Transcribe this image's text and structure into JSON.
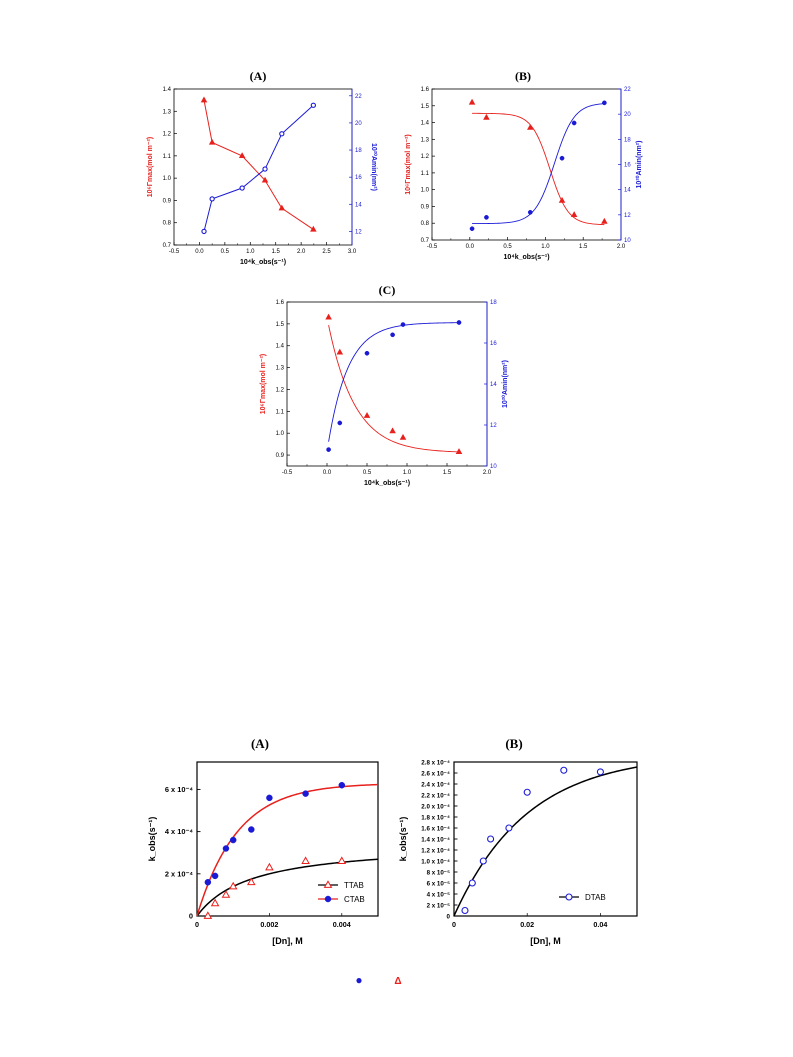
{
  "colors": {
    "red": "#e8211d",
    "blue": "#1a1ad6",
    "black": "#000000"
  },
  "stray_symbols": {
    "first": "●",
    "second": "Δ"
  },
  "chart_data": [
    {
      "id": "top-A",
      "type": "line",
      "panel_label": "(A)",
      "xlabel": "10⁴k_obs(s⁻¹)",
      "ylabel_left": "10⁶Γmax(mol m⁻²)",
      "ylabel_right": "10²⁰Amin(nm²)",
      "xlim": [
        -0.5,
        3.0
      ],
      "xticks": [
        -0.5,
        0.0,
        0.5,
        1.0,
        1.5,
        2.0,
        2.5,
        3.0
      ],
      "xtick_labels": [
        "-0.5",
        "0.0",
        "0.5",
        "1.0",
        "1.5",
        "2.0",
        "2.5",
        "3.0"
      ],
      "ylim_left": [
        0.7,
        1.4
      ],
      "yticks_left": [
        0.7,
        0.8,
        0.9,
        1.0,
        1.1,
        1.2,
        1.3,
        1.4
      ],
      "ytick_labels_left": [
        "0.7",
        "0.8",
        "0.9",
        "1.0",
        "1.1",
        "1.2",
        "1.3",
        "1.4"
      ],
      "ylim_right": [
        11,
        22.5
      ],
      "yticks_right": [
        12,
        14,
        16,
        18,
        20,
        22
      ],
      "ytick_labels_right": [
        "12",
        "14",
        "16",
        "18",
        "20",
        "22"
      ],
      "series": [
        {
          "axis": "left",
          "color": "red",
          "marker": "triangle",
          "fit": "polyline",
          "x": [
            0.09,
            0.25,
            0.84,
            1.29,
            1.62,
            2.24
          ],
          "y": [
            1.35,
            1.16,
            1.1,
            0.99,
            0.865,
            0.77
          ]
        },
        {
          "axis": "right",
          "color": "blue",
          "marker": "open-circle",
          "fit": "polyline",
          "x": [
            0.09,
            0.25,
            0.84,
            1.29,
            1.62,
            2.24
          ],
          "y": [
            12.0,
            14.4,
            15.2,
            16.6,
            19.2,
            21.3
          ]
        }
      ]
    },
    {
      "id": "top-B",
      "type": "scatter",
      "panel_label": "(B)",
      "xlabel": "10⁴k_obs(s⁻¹)",
      "ylabel_left": "10⁶Γmax(mol m⁻²)",
      "ylabel_right": "10²⁰Amin(nm²)",
      "xlim": [
        -0.5,
        2.0
      ],
      "xticks": [
        -0.5,
        0.0,
        0.5,
        1.0,
        1.5,
        2.0
      ],
      "xtick_labels": [
        "-0.5",
        "0.0",
        "0.5",
        "1.0",
        "1.5",
        "2.0"
      ],
      "ylim_left": [
        0.7,
        1.6
      ],
      "yticks_left": [
        0.7,
        0.8,
        0.9,
        1.0,
        1.1,
        1.2,
        1.3,
        1.4,
        1.5,
        1.6
      ],
      "ytick_labels_left": [
        "0.7",
        "0.8",
        "0.9",
        "1.0",
        "1.1",
        "1.2",
        "1.3",
        "1.4",
        "1.5",
        "1.6"
      ],
      "ylim_right": [
        10,
        22
      ],
      "yticks_right": [
        10,
        12,
        14,
        16,
        18,
        20,
        22
      ],
      "ytick_labels_right": [
        "10",
        "12",
        "14",
        "16",
        "18",
        "20",
        "22"
      ],
      "series": [
        {
          "axis": "left",
          "color": "red",
          "marker": "triangle",
          "fit": "sigmoid",
          "x": [
            0.03,
            0.22,
            0.8,
            1.22,
            1.38,
            1.78
          ],
          "y": [
            1.52,
            1.43,
            1.37,
            0.935,
            0.85,
            0.81
          ],
          "fit_params": {
            "top": 1.455,
            "bottom": 0.79,
            "x0": 1.06,
            "k": 0.12
          }
        },
        {
          "axis": "right",
          "color": "blue",
          "marker": "filled-circle",
          "fit": "sigmoid",
          "x": [
            0.03,
            0.22,
            0.8,
            1.22,
            1.38,
            1.78
          ],
          "y": [
            10.9,
            11.8,
            12.2,
            16.5,
            19.3,
            20.9
          ],
          "fit_params": {
            "top": 11.3,
            "bottom": 20.9,
            "x0": 1.12,
            "k": 0.13
          }
        }
      ]
    },
    {
      "id": "top-C",
      "type": "scatter",
      "panel_label": "(C)",
      "xlabel": "10⁴k_obs(s⁻¹)",
      "ylabel_left": "10⁶Γmax(mol m⁻²)",
      "ylabel_right": "10²⁰Amin(nm²)",
      "xlim": [
        -0.5,
        2.0
      ],
      "xticks": [
        -0.5,
        0.0,
        0.5,
        1.0,
        1.5,
        2.0
      ],
      "xtick_labels": [
        "-0.5",
        "0.0",
        "0.5",
        "1.0",
        "1.5",
        "2.0"
      ],
      "ylim_left": [
        0.85,
        1.6
      ],
      "yticks_left": [
        0.9,
        1.0,
        1.1,
        1.2,
        1.3,
        1.4,
        1.5,
        1.6
      ],
      "ytick_labels_left": [
        "0.9",
        "1.0",
        "1.1",
        "1.2",
        "1.3",
        "1.4",
        "1.5",
        "1.6"
      ],
      "ylim_right": [
        10,
        18
      ],
      "yticks_right": [
        10,
        12,
        14,
        16,
        18
      ],
      "ytick_labels_right": [
        "10",
        "12",
        "14",
        "16",
        "18"
      ],
      "series": [
        {
          "axis": "left",
          "color": "red",
          "marker": "triangle",
          "fit": "exp-decay",
          "x": [
            0.02,
            0.16,
            0.5,
            0.82,
            0.95,
            1.65
          ],
          "y": [
            1.53,
            1.37,
            1.08,
            1.01,
            0.98,
            0.915
          ],
          "fit_params": {
            "a": 0.91,
            "b": 0.62,
            "k": 3.0
          }
        },
        {
          "axis": "right",
          "color": "blue",
          "marker": "filled-circle",
          "fit": "exp-rise",
          "x": [
            0.02,
            0.16,
            0.5,
            0.82,
            0.95,
            1.65
          ],
          "y": [
            10.8,
            12.1,
            15.5,
            16.4,
            16.9,
            17.0
          ],
          "fit_params": {
            "a": 17.0,
            "b": 6.3,
            "k": 4.0
          }
        }
      ]
    },
    {
      "id": "bottom-A",
      "type": "scatter",
      "panel_label": "(A)",
      "xlabel": "[Dn], M",
      "ylabel": "k_obs(s⁻¹)",
      "xlim": [
        0,
        0.005
      ],
      "xticks": [
        0,
        0.002,
        0.004
      ],
      "xtick_labels": [
        "0",
        "0.002",
        "0.004"
      ],
      "ylim": [
        0,
        0.00073
      ],
      "yticks": [
        0,
        0.0002,
        0.0004,
        0.0006
      ],
      "ytick_labels": [
        "0",
        "2 x 10⁻⁴",
        "4 x 10⁻⁴",
        "6 x 10⁻⁴"
      ],
      "legend_position": "bottom-right",
      "series": [
        {
          "name": "TTAB",
          "color": "red",
          "marker": "open-triangle",
          "fit_color": "black",
          "x": [
            0.0003,
            0.0005,
            0.0008,
            0.001,
            0.0015,
            0.002,
            0.003,
            0.004
          ],
          "y": [
            0.0,
            6e-05,
            0.0001,
            0.00014,
            0.00016,
            0.00023,
            0.00026,
            0.00026
          ],
          "fit_params": {
            "vmax": 0.00035,
            "km": 0.0015
          }
        },
        {
          "name": "CTAB",
          "color": "blue",
          "marker": "filled-circle",
          "fit_color": "red",
          "x": [
            0.0003,
            0.0005,
            0.0008,
            0.001,
            0.0015,
            0.002,
            0.003,
            0.004
          ],
          "y": [
            0.00016,
            0.00019,
            0.00032,
            0.00036,
            0.00041,
            0.00056,
            0.00058,
            0.00062
          ],
          "fit_params": {
            "a": 0.00063,
            "k": 900
          }
        }
      ]
    },
    {
      "id": "bottom-B",
      "type": "scatter",
      "panel_label": "(B)",
      "xlabel": "[Dn], M",
      "ylabel": "k_obs(s⁻¹)",
      "xlim": [
        0,
        0.05
      ],
      "xticks": [
        0,
        0.02,
        0.04
      ],
      "xtick_labels": [
        "0",
        "0.02",
        "0.04"
      ],
      "ylim": [
        0,
        0.00028
      ],
      "yticks": [
        0,
        2e-05,
        4e-05,
        6e-05,
        8e-05,
        0.0001,
        0.00012,
        0.00014,
        0.00016,
        0.00018,
        0.0002,
        0.00022,
        0.00024,
        0.00026,
        0.00028
      ],
      "ytick_labels": [
        "0",
        "2 x 10⁻⁵",
        "4 x 10⁻⁵",
        "6 x 10⁻⁵",
        "8 x 10⁻⁵",
        "1.0 x 10⁻⁴",
        "1.2 x 10⁻⁴",
        "1.4 x 10⁻⁴",
        "1.6 x 10⁻⁴",
        "1.8 x 10⁻⁴",
        "2.0 x 10⁻⁴",
        "2.2 x 10⁻⁴",
        "2.4 x 10⁻⁴",
        "2.6 x 10⁻⁴",
        "2.8 x 10⁻⁴"
      ],
      "legend_position": "bottom-right",
      "series": [
        {
          "name": "DTAB",
          "color": "blue",
          "marker": "open-circle",
          "fit_color": "black",
          "x": [
            0.003,
            0.005,
            0.008,
            0.01,
            0.015,
            0.02,
            0.03,
            0.04
          ],
          "y": [
            1e-05,
            6e-05,
            0.0001,
            0.00014,
            0.00016,
            0.000225,
            0.000265,
            0.000262
          ],
          "fit_params": {
            "a": 0.000295,
            "k": 50
          }
        }
      ]
    }
  ]
}
